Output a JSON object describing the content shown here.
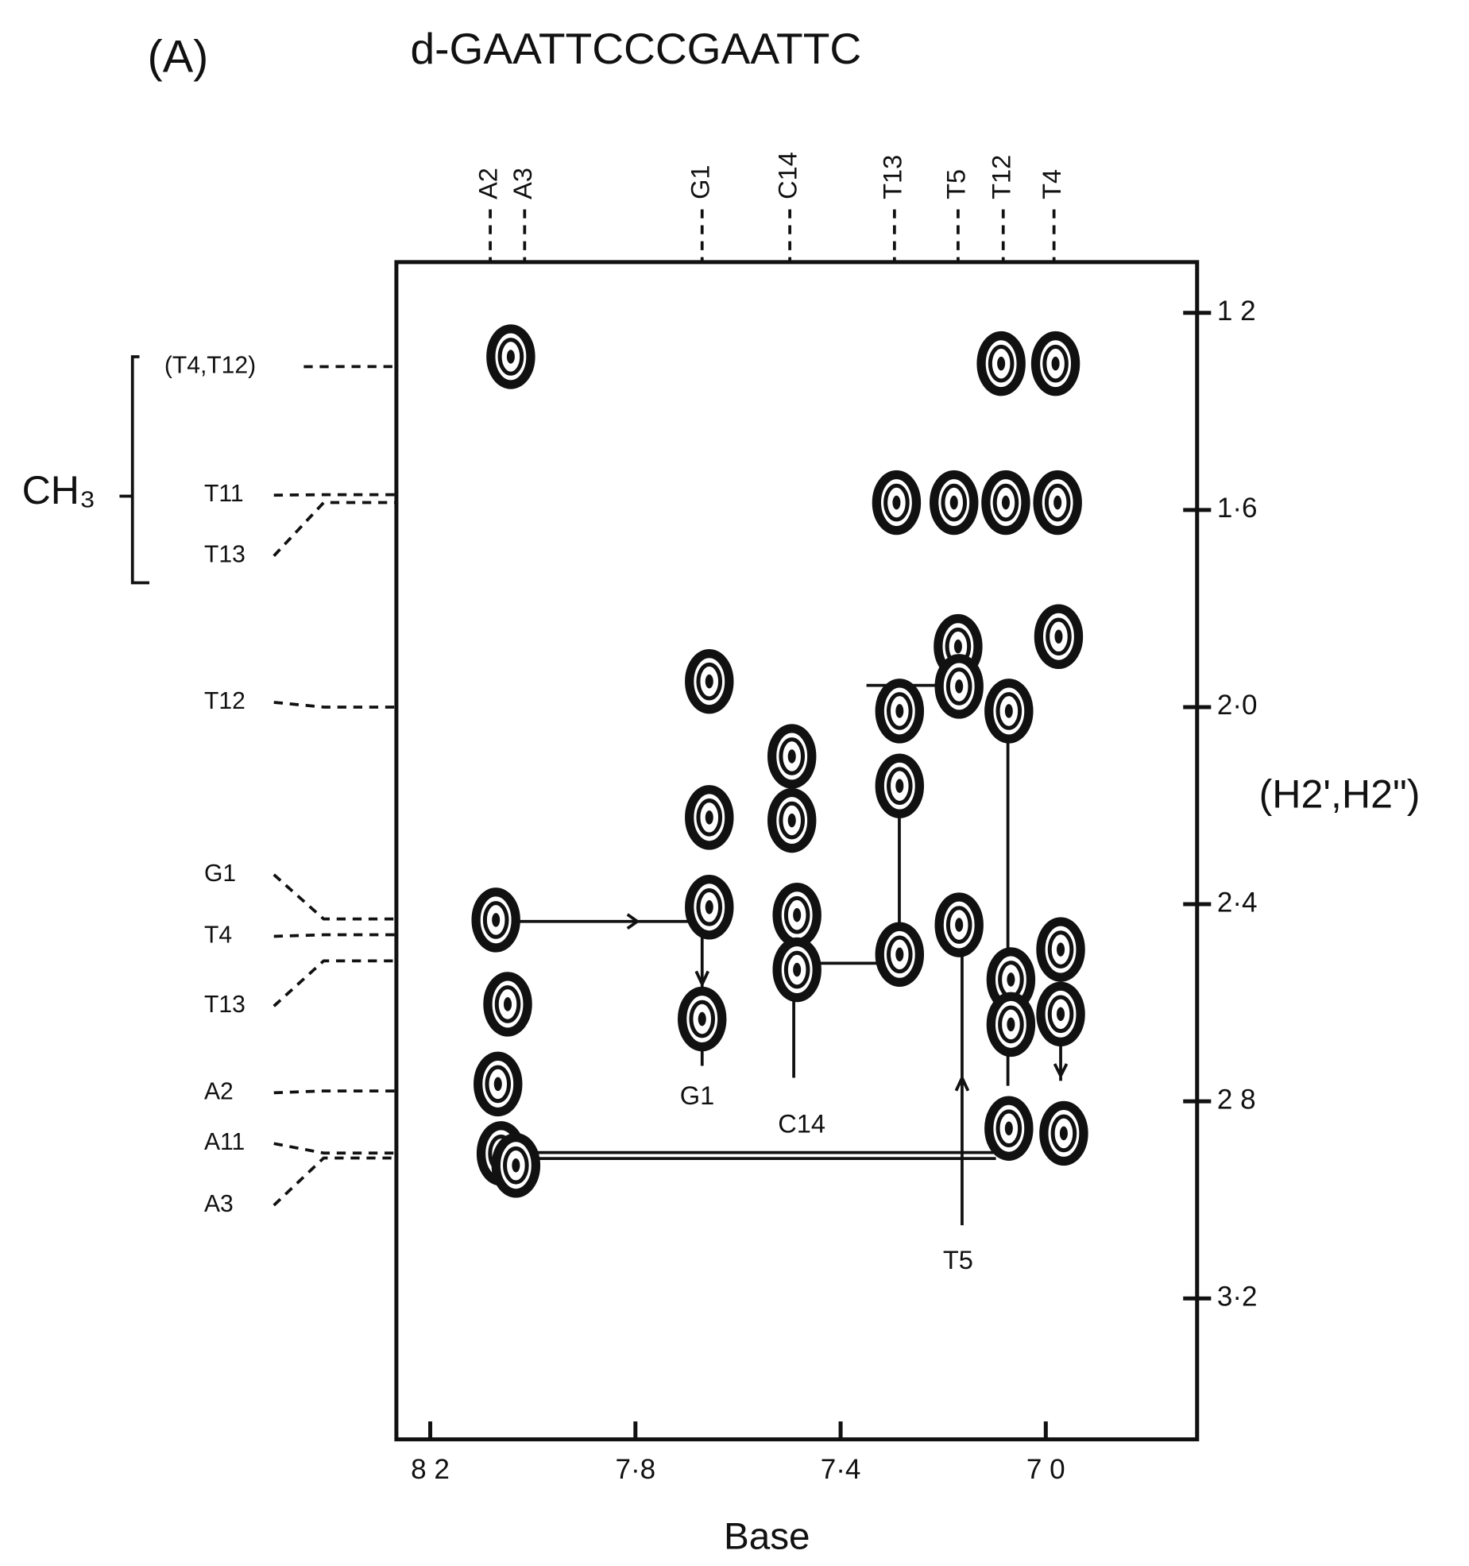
{
  "chart_data": {
    "type": "contour",
    "panel_label": "(A)",
    "title": "d-GAATTCCCGAATTC",
    "x_label": "Base",
    "y_label": "(H2',H2\")",
    "group_label": "CH₃",
    "xlim": [
      8.266,
      6.705
    ],
    "ylim": [
      1.097,
      3.486
    ],
    "xticks": [
      {
        "value": 8.2,
        "label": "8 2"
      },
      {
        "value": 7.8,
        "label": "7·8"
      },
      {
        "value": 7.4,
        "label": "7·4"
      },
      {
        "value": 7.0,
        "label": "7 0"
      }
    ],
    "yticks": [
      {
        "value": 1.2,
        "label": "1 2"
      },
      {
        "value": 1.6,
        "label": "1·6"
      },
      {
        "value": 2.0,
        "label": "2·0"
      },
      {
        "value": 2.4,
        "label": "2·4"
      },
      {
        "value": 2.8,
        "label": "2 8"
      },
      {
        "value": 3.2,
        "label": "3·2"
      }
    ],
    "top_labels": [
      {
        "label": "A2",
        "x": 8.083
      },
      {
        "label": "A3",
        "x": 8.016
      },
      {
        "label": "G1",
        "x": 7.67
      },
      {
        "label": "C14",
        "x": 7.499
      },
      {
        "label": "T13",
        "x": 7.295
      },
      {
        "label": "T5",
        "x": 7.171
      },
      {
        "label": "T12",
        "x": 7.083
      },
      {
        "label": "T4",
        "x": 6.984
      }
    ],
    "left_labels": [
      {
        "label": "(T4,T12)",
        "y": 1.309
      },
      {
        "label": "T11",
        "y": 1.569
      },
      {
        "label": "T13",
        "y": 1.585
      },
      {
        "label": "T12",
        "y": 2.0
      },
      {
        "label": "G1",
        "y": 2.43
      },
      {
        "label": "T4",
        "y": 2.462
      },
      {
        "label": "T13",
        "y": 2.515
      },
      {
        "label": "A2",
        "y": 2.779
      },
      {
        "label": "A11",
        "y": 2.905
      },
      {
        "label": "A3",
        "y": 2.915
      }
    ],
    "inner_labels": [
      "G1",
      "C14",
      "T5"
    ],
    "peaks": {
      "x": [
        8.043,
        7.087,
        6.981,
        7.291,
        7.179,
        7.078,
        6.977,
        7.171,
        6.975,
        7.656,
        7.285,
        7.285,
        7.169,
        7.072,
        7.495,
        7.495,
        7.656,
        7.656,
        7.485,
        7.485,
        7.285,
        7.169,
        8.072,
        7.068,
        7.068,
        6.971,
        6.971,
        8.049,
        8.068,
        8.062,
        8.033,
        7.072,
        6.965,
        7.67
      ],
      "y": [
        1.289,
        1.303,
        1.303,
        1.585,
        1.585,
        1.585,
        1.585,
        1.877,
        1.857,
        1.948,
        2.008,
        2.16,
        1.958,
        2.008,
        2.1,
        2.23,
        2.224,
        2.406,
        2.422,
        2.533,
        2.502,
        2.442,
        2.432,
        2.553,
        2.644,
        2.492,
        2.623,
        2.603,
        2.765,
        2.906,
        2.93,
        2.855,
        2.865,
        2.633
      ]
    }
  }
}
